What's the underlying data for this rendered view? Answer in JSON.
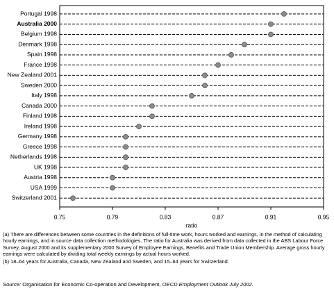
{
  "chart_data": {
    "type": "dot",
    "categories": [
      "Portugal 1998",
      "Australia 2000",
      "Belgium 1998",
      "Denmark 1998",
      "Spain 1998",
      "France 1998",
      "New Zealand 2001",
      "Sweden 2000",
      "Italy 1998",
      "Canada 2000",
      "Finland 1998",
      "Ireland 1998",
      "Germany 1998",
      "Greece 1998",
      "Netherlands 1998",
      "UK 1998",
      "Austria 1998",
      "USA 1999",
      "Switzerland 2001"
    ],
    "values": [
      0.92,
      0.91,
      0.91,
      0.89,
      0.88,
      0.87,
      0.86,
      0.86,
      0.85,
      0.82,
      0.82,
      0.81,
      0.8,
      0.8,
      0.8,
      0.8,
      0.79,
      0.79,
      0.76
    ],
    "color": "#8c8c8c",
    "xlabel": "ratio",
    "xlim": [
      0.75,
      0.95
    ],
    "xticks": [
      0.75,
      0.79,
      0.83,
      0.87,
      0.91,
      0.95
    ],
    "grid": true
  },
  "notes": [
    "(a) There are differences between some countries in the definitions of full-time work, hours worked and earnings, in the method of calculating hourly earnings, and in source data collection methodologies. The ratio for Australia was derived from data collected in the ABS Labour Force Survey, August 2000 and its supplementary 2000 Survey of Employee Earnings, Benefits and Trade Union Membership. Average gross hourly earnings were calculated by dividing total weekly earnings by actual hours worked.",
    "(b) 18–64 years for Australia, Canada, New Zealand and Sweden, and 15–64 years for Switzerland."
  ],
  "source": {
    "label": "Source:",
    "text": " Organisation for Economic Co-operation and Development, ",
    "publication": "OECD Employment Outlook July 2002",
    "end": "."
  }
}
